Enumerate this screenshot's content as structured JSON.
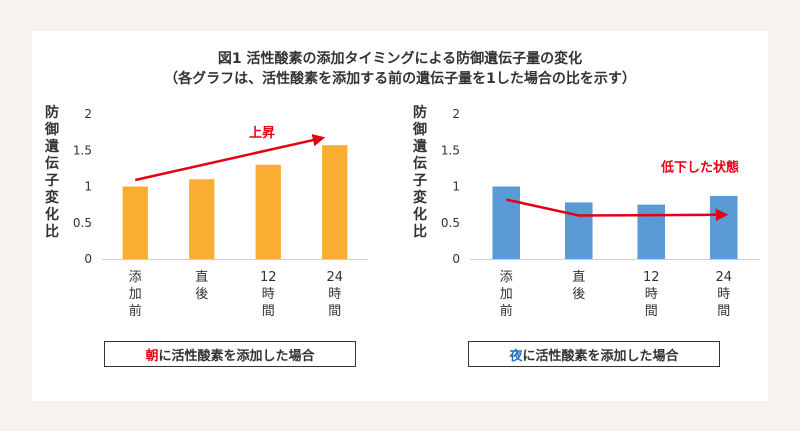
{
  "title_line1": "図1 活性酸素の添加タイミングによる防御遺伝子量の変化",
  "title_line2": "（各グラフは、活性酸素を添加する前の遺伝子量を1した場合の比を示す）",
  "chart_data": [
    {
      "type": "bar",
      "ylabel": "防御遺伝子変化比",
      "ylim": [
        0,
        2
      ],
      "yticks": [
        "0",
        "0.5",
        "1",
        "1.5",
        "2"
      ],
      "categories": [
        "添加前",
        "直後",
        "12時間",
        "24時間"
      ],
      "category_lines": [
        [
          "添",
          "加",
          "前"
        ],
        [
          "直",
          "後"
        ],
        [
          "12",
          "時",
          "間"
        ],
        [
          "24",
          "時",
          "間"
        ]
      ],
      "values": [
        1.0,
        1.1,
        1.3,
        1.57
      ],
      "bar_color": "#f9ae31",
      "annotation": "上昇",
      "annotation_color": "#e60012",
      "caption_highlight": "朝",
      "caption_highlight_color": "#e60012",
      "caption_rest": "に活性酸素を添加した場合"
    },
    {
      "type": "bar",
      "ylabel": "防御遺伝子変化比",
      "ylim": [
        0,
        2
      ],
      "yticks": [
        "0",
        "0.5",
        "1",
        "1.5",
        "2"
      ],
      "categories": [
        "添加前",
        "直後",
        "12時間",
        "24時間"
      ],
      "category_lines": [
        [
          "添",
          "加",
          "前"
        ],
        [
          "直",
          "後"
        ],
        [
          "12",
          "時",
          "間"
        ],
        [
          "24",
          "時",
          "間"
        ]
      ],
      "values": [
        1.0,
        0.78,
        0.75,
        0.87
      ],
      "bar_color": "#5b9bd5",
      "annotation": "低下した状態",
      "annotation_color": "#e60012",
      "caption_highlight": "夜",
      "caption_highlight_color": "#1a6fc0",
      "caption_rest": "に活性酸素を添加した場合"
    }
  ]
}
